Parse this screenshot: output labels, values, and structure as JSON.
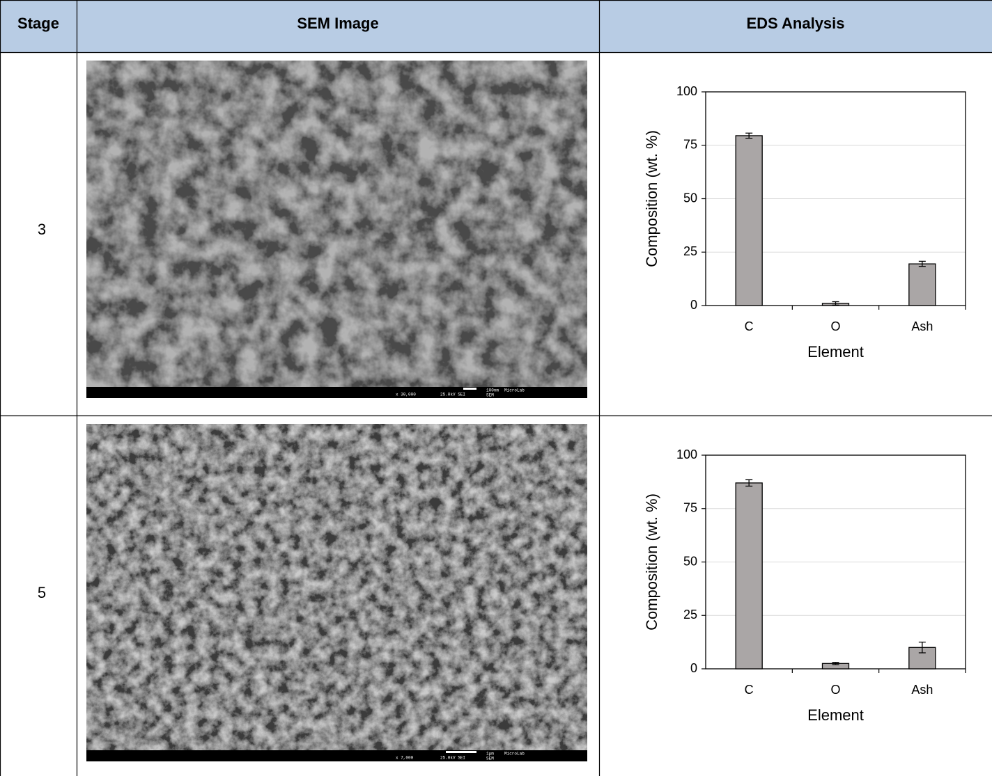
{
  "table": {
    "headers": [
      "Stage",
      "SEM Image",
      "EDS Analysis"
    ],
    "rows": [
      {
        "stage": "3",
        "sem": {
          "magnification": "x 30,000",
          "voltage": "25.0kV SEI",
          "scale": "100nm",
          "lab": "MicroLab",
          "mode": "SEM"
        },
        "eds": {
          "type": "bar",
          "ylabel": "Composition (wt. %)",
          "xlabel": "Element",
          "categories": [
            "C",
            "O",
            "Ash"
          ],
          "values": [
            79.5,
            1,
            19.5
          ],
          "errors": [
            1.2,
            0.8,
            1.2
          ],
          "ylim": [
            0,
            100
          ],
          "yticks": [
            0,
            25,
            50,
            75,
            100
          ],
          "grid": true,
          "color": "#aaa6a6"
        }
      },
      {
        "stage": "5",
        "sem": {
          "magnification": "x 7,000",
          "voltage": "25.0kV SEI",
          "scale": "1μm",
          "lab": "MicroLab",
          "mode": "SEM"
        },
        "eds": {
          "type": "bar",
          "ylabel": "Composition (wt. %)",
          "xlabel": "Element",
          "categories": [
            "C",
            "O",
            "Ash"
          ],
          "values": [
            87,
            2.5,
            10
          ],
          "errors": [
            1.5,
            0.5,
            2.5
          ],
          "ylim": [
            0,
            100
          ],
          "yticks": [
            0,
            25,
            50,
            75,
            100
          ],
          "grid": true,
          "color": "#aaa6a6"
        }
      }
    ]
  }
}
